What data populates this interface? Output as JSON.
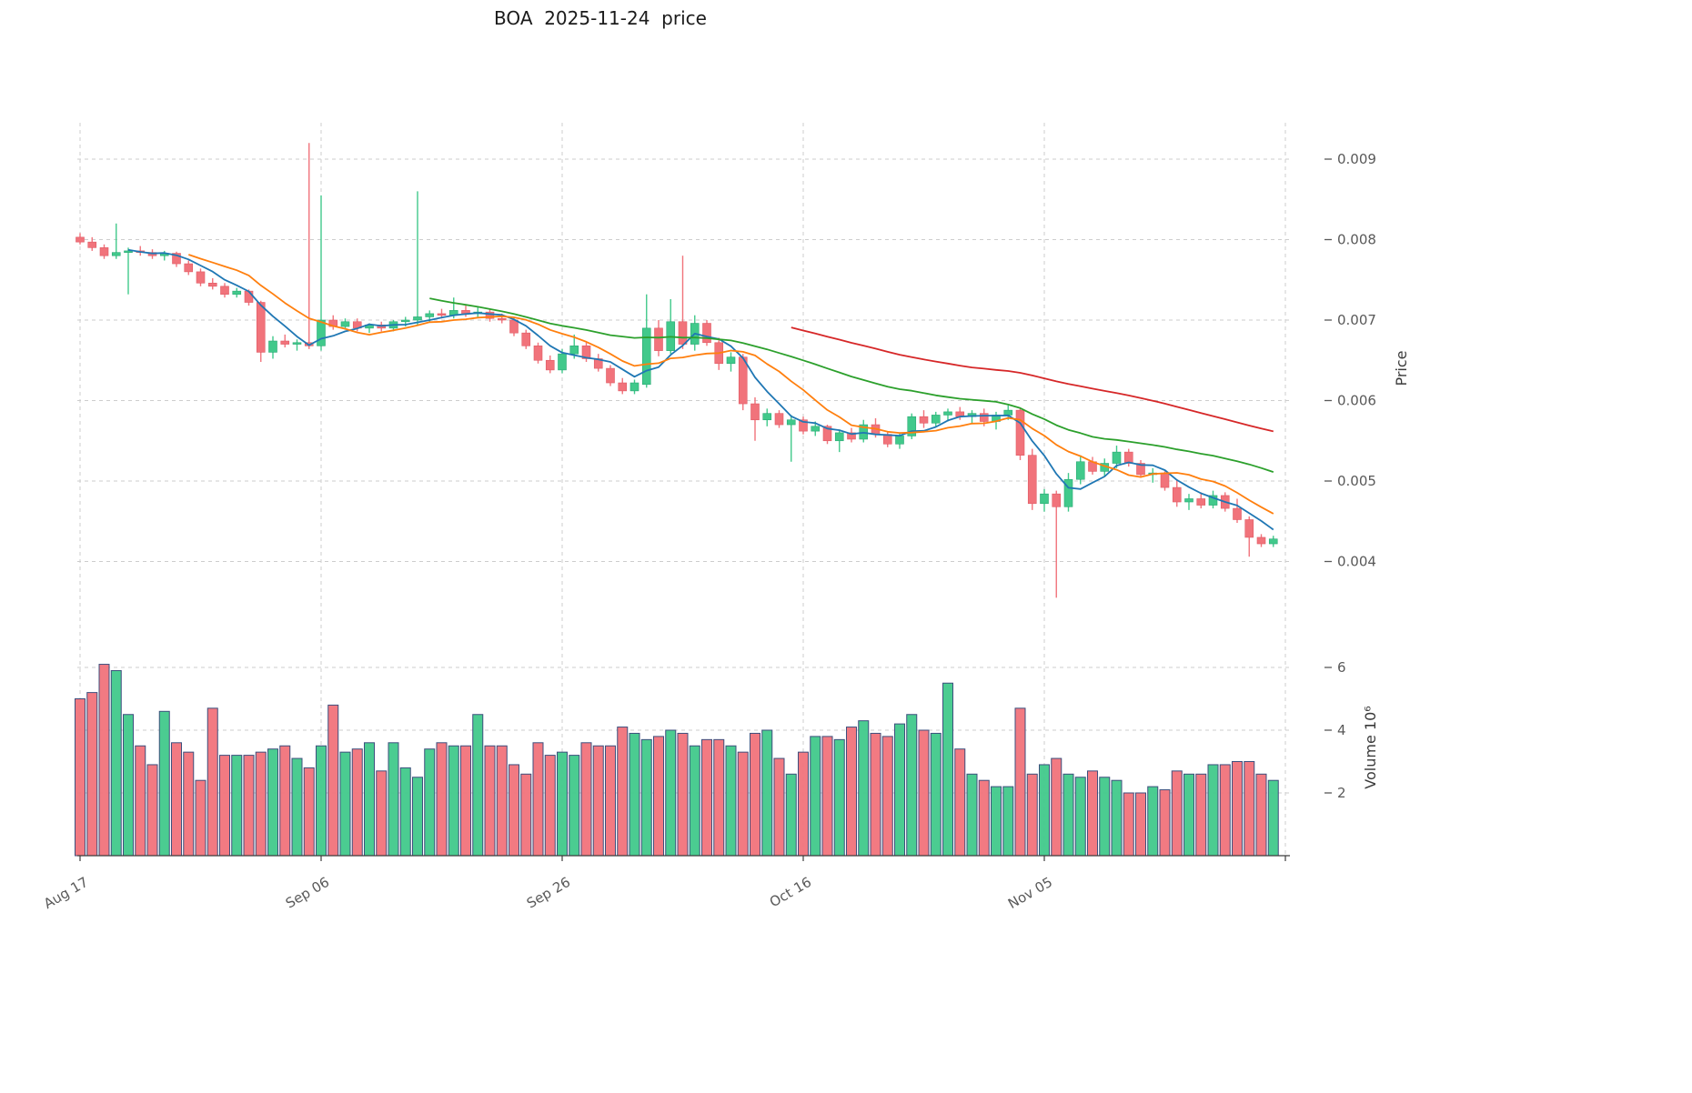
{
  "chart_data": {
    "type": "candlestick",
    "title": "BOA  2025-11-24  price",
    "xlabel": "",
    "ylabel": "Price",
    "ylabel_volume": "Volume 10⁶",
    "price_ticks": [
      "0.004",
      "0.005",
      "0.006",
      "0.007",
      "0.008",
      "0.009"
    ],
    "volume_ticks": [
      "2",
      "4",
      "6"
    ],
    "ylim": [
      0.0033,
      0.0095
    ],
    "volume_ylim": [
      0,
      6.5
    ],
    "x_ticks": [
      {
        "label": "Aug 17",
        "index": 0
      },
      {
        "label": "Sep 06",
        "index": 20
      },
      {
        "label": "Sep 26",
        "index": 40
      },
      {
        "label": "Oct 16",
        "index": 60
      },
      {
        "label": "Nov 05",
        "index": 80
      },
      {
        "label": "",
        "index": 100
      }
    ],
    "colors": {
      "up": "#41c98b",
      "down": "#f1737b",
      "up_edge": "#2aa874",
      "down_edge": "#df5a64",
      "volume_edge": "#3d4f7d",
      "grid": "#cdcdcd",
      "axis": "#3c3c3c",
      "tick_text": "#595959",
      "label_text": "#3a3a3a"
    },
    "indicators": [
      {
        "name": "sma-5",
        "window": 5,
        "color": "#1f77b4"
      },
      {
        "name": "sma-10",
        "window": 10,
        "color": "#ff7f0e"
      },
      {
        "name": "sma-30",
        "window": 30,
        "color": "#2ca02c"
      },
      {
        "name": "sma-60",
        "window": 60,
        "color": "#d62728"
      }
    ],
    "columns": [
      "date",
      "open",
      "high",
      "low",
      "close",
      "volume_millions"
    ],
    "ohlcv": [
      [
        "2025-08-17",
        0.00803,
        0.00808,
        0.00794,
        0.00797,
        5.0
      ],
      [
        "2025-08-18",
        0.00797,
        0.00803,
        0.00786,
        0.0079,
        5.2
      ],
      [
        "2025-08-19",
        0.0079,
        0.00794,
        0.00776,
        0.0078,
        6.1
      ],
      [
        "2025-08-20",
        0.0078,
        0.0082,
        0.00776,
        0.00784,
        5.9
      ],
      [
        "2025-08-21",
        0.00784,
        0.0079,
        0.00732,
        0.00786,
        4.5
      ],
      [
        "2025-08-22",
        0.00786,
        0.00792,
        0.0078,
        0.00784,
        3.5
      ],
      [
        "2025-08-23",
        0.00784,
        0.00788,
        0.00776,
        0.0078,
        2.9
      ],
      [
        "2025-08-24",
        0.0078,
        0.00786,
        0.00774,
        0.00783,
        4.6
      ],
      [
        "2025-08-25",
        0.00783,
        0.00785,
        0.00766,
        0.0077,
        3.6
      ],
      [
        "2025-08-26",
        0.0077,
        0.00774,
        0.00756,
        0.0076,
        3.3
      ],
      [
        "2025-08-27",
        0.0076,
        0.00764,
        0.00742,
        0.00746,
        2.4
      ],
      [
        "2025-08-28",
        0.00746,
        0.00752,
        0.00738,
        0.00742,
        4.7
      ],
      [
        "2025-08-29",
        0.00742,
        0.00746,
        0.00728,
        0.00732,
        3.2
      ],
      [
        "2025-08-30",
        0.00732,
        0.0074,
        0.00728,
        0.00736,
        3.2
      ],
      [
        "2025-08-31",
        0.00736,
        0.00738,
        0.00718,
        0.00722,
        3.2
      ],
      [
        "2025-09-01",
        0.00722,
        0.00724,
        0.00648,
        0.0066,
        3.3
      ],
      [
        "2025-09-02",
        0.0066,
        0.0068,
        0.00652,
        0.00674,
        3.4
      ],
      [
        "2025-09-03",
        0.00674,
        0.00682,
        0.00666,
        0.0067,
        3.5
      ],
      [
        "2025-09-04",
        0.0067,
        0.00676,
        0.00662,
        0.00672,
        3.1
      ],
      [
        "2025-09-05",
        0.00672,
        0.0092,
        0.00664,
        0.00668,
        2.8
      ],
      [
        "2025-09-06",
        0.00668,
        0.00855,
        0.00662,
        0.007,
        3.5
      ],
      [
        "2025-09-07",
        0.007,
        0.00706,
        0.00688,
        0.00692,
        4.8
      ],
      [
        "2025-09-08",
        0.00692,
        0.00702,
        0.00688,
        0.00698,
        3.3
      ],
      [
        "2025-09-09",
        0.00698,
        0.00702,
        0.00686,
        0.0069,
        3.4
      ],
      [
        "2025-09-10",
        0.0069,
        0.00696,
        0.00684,
        0.00694,
        3.6
      ],
      [
        "2025-09-11",
        0.00694,
        0.00698,
        0.00686,
        0.0069,
        2.7
      ],
      [
        "2025-09-12",
        0.0069,
        0.007,
        0.00686,
        0.00698,
        3.6
      ],
      [
        "2025-09-13",
        0.00698,
        0.00704,
        0.00692,
        0.007,
        2.8
      ],
      [
        "2025-09-14",
        0.007,
        0.0086,
        0.00694,
        0.00704,
        2.5
      ],
      [
        "2025-09-15",
        0.00704,
        0.00712,
        0.00698,
        0.00708,
        3.4
      ],
      [
        "2025-09-16",
        0.00708,
        0.00714,
        0.00702,
        0.00706,
        3.6
      ],
      [
        "2025-09-17",
        0.00706,
        0.00728,
        0.00702,
        0.00712,
        3.5
      ],
      [
        "2025-09-18",
        0.00712,
        0.00718,
        0.00704,
        0.00708,
        3.5
      ],
      [
        "2025-09-19",
        0.00708,
        0.00716,
        0.00704,
        0.0071,
        4.5
      ],
      [
        "2025-09-20",
        0.0071,
        0.00714,
        0.00698,
        0.00702,
        3.5
      ],
      [
        "2025-09-21",
        0.00702,
        0.00708,
        0.00696,
        0.007,
        3.5
      ],
      [
        "2025-09-22",
        0.007,
        0.00704,
        0.0068,
        0.00684,
        2.9
      ],
      [
        "2025-09-23",
        0.00684,
        0.00688,
        0.00664,
        0.00668,
        2.6
      ],
      [
        "2025-09-24",
        0.00668,
        0.00672,
        0.00646,
        0.0065,
        3.6
      ],
      [
        "2025-09-25",
        0.0065,
        0.00656,
        0.00634,
        0.00638,
        3.2
      ],
      [
        "2025-09-26",
        0.00638,
        0.00664,
        0.00634,
        0.00658,
        3.3
      ],
      [
        "2025-09-27",
        0.00658,
        0.00682,
        0.00652,
        0.00668,
        3.2
      ],
      [
        "2025-09-28",
        0.00668,
        0.00672,
        0.00648,
        0.00652,
        3.6
      ],
      [
        "2025-09-29",
        0.00652,
        0.00658,
        0.00636,
        0.0064,
        3.5
      ],
      [
        "2025-09-30",
        0.0064,
        0.00644,
        0.00618,
        0.00622,
        3.5
      ],
      [
        "2025-10-01",
        0.00622,
        0.00628,
        0.00608,
        0.00612,
        4.1
      ],
      [
        "2025-10-02",
        0.00612,
        0.00626,
        0.00608,
        0.00622,
        3.9
      ],
      [
        "2025-10-03",
        0.0062,
        0.00732,
        0.00616,
        0.0069,
        3.7
      ],
      [
        "2025-10-04",
        0.0069,
        0.007,
        0.00655,
        0.00662,
        3.8
      ],
      [
        "2025-10-05",
        0.00662,
        0.00726,
        0.00658,
        0.00698,
        4.0
      ],
      [
        "2025-10-06",
        0.00698,
        0.0078,
        0.00664,
        0.0067,
        3.9
      ],
      [
        "2025-10-07",
        0.0067,
        0.00706,
        0.00662,
        0.00696,
        3.5
      ],
      [
        "2025-10-08",
        0.00696,
        0.007,
        0.00668,
        0.00672,
        3.7
      ],
      [
        "2025-10-09",
        0.00672,
        0.00678,
        0.00638,
        0.00646,
        3.7
      ],
      [
        "2025-10-10",
        0.00646,
        0.0066,
        0.00636,
        0.00654,
        3.5
      ],
      [
        "2025-10-11",
        0.00654,
        0.00658,
        0.00588,
        0.00596,
        3.3
      ],
      [
        "2025-10-12",
        0.00596,
        0.00604,
        0.0055,
        0.00576,
        3.9
      ],
      [
        "2025-10-13",
        0.00576,
        0.0059,
        0.00568,
        0.00584,
        4.0
      ],
      [
        "2025-10-14",
        0.00584,
        0.00588,
        0.00566,
        0.0057,
        3.1
      ],
      [
        "2025-10-15",
        0.0057,
        0.00582,
        0.00524,
        0.00576,
        2.6
      ],
      [
        "2025-10-16",
        0.00576,
        0.0058,
        0.00558,
        0.00562,
        3.3
      ],
      [
        "2025-10-17",
        0.00562,
        0.00574,
        0.00556,
        0.00568,
        3.8
      ],
      [
        "2025-10-18",
        0.00568,
        0.0057,
        0.00546,
        0.0055,
        3.8
      ],
      [
        "2025-10-19",
        0.0055,
        0.00564,
        0.00536,
        0.0056,
        3.7
      ],
      [
        "2025-10-20",
        0.0056,
        0.00566,
        0.00548,
        0.00552,
        4.1
      ],
      [
        "2025-10-21",
        0.00552,
        0.00576,
        0.00548,
        0.0057,
        4.3
      ],
      [
        "2025-10-22",
        0.0057,
        0.00578,
        0.00554,
        0.00558,
        3.9
      ],
      [
        "2025-10-23",
        0.00558,
        0.00562,
        0.00542,
        0.00546,
        3.8
      ],
      [
        "2025-10-24",
        0.00546,
        0.0056,
        0.0054,
        0.00556,
        4.2
      ],
      [
        "2025-10-25",
        0.00556,
        0.00584,
        0.00552,
        0.0058,
        4.5
      ],
      [
        "2025-10-26",
        0.0058,
        0.00588,
        0.00566,
        0.00572,
        4.0
      ],
      [
        "2025-10-27",
        0.00572,
        0.00586,
        0.00568,
        0.00582,
        3.9
      ],
      [
        "2025-10-28",
        0.00582,
        0.0059,
        0.00574,
        0.00586,
        5.5
      ],
      [
        "2025-10-29",
        0.00586,
        0.00592,
        0.00576,
        0.0058,
        3.4
      ],
      [
        "2025-10-30",
        0.0058,
        0.00588,
        0.00572,
        0.00584,
        2.6
      ],
      [
        "2025-10-31",
        0.00584,
        0.0059,
        0.00568,
        0.00574,
        2.4
      ],
      [
        "2025-11-01",
        0.00574,
        0.00586,
        0.00564,
        0.00582,
        2.2
      ],
      [
        "2025-11-02",
        0.00582,
        0.00594,
        0.00576,
        0.00588,
        2.2
      ],
      [
        "2025-11-03",
        0.00588,
        0.0059,
        0.00526,
        0.00532,
        4.7
      ],
      [
        "2025-11-04",
        0.00532,
        0.0054,
        0.00464,
        0.00472,
        2.6
      ],
      [
        "2025-11-05",
        0.00472,
        0.0049,
        0.00462,
        0.00484,
        2.9
      ],
      [
        "2025-11-06",
        0.00484,
        0.00488,
        0.00355,
        0.00468,
        3.1
      ],
      [
        "2025-11-07",
        0.00468,
        0.0051,
        0.00462,
        0.00502,
        2.6
      ],
      [
        "2025-11-08",
        0.00502,
        0.00532,
        0.00496,
        0.00524,
        2.5
      ],
      [
        "2025-11-09",
        0.00524,
        0.0053,
        0.00508,
        0.00512,
        2.7
      ],
      [
        "2025-11-10",
        0.00512,
        0.00528,
        0.00506,
        0.00522,
        2.5
      ],
      [
        "2025-11-11",
        0.00522,
        0.00544,
        0.00516,
        0.00536,
        2.4
      ],
      [
        "2025-11-12",
        0.00536,
        0.0054,
        0.00518,
        0.00522,
        2.0
      ],
      [
        "2025-11-13",
        0.00522,
        0.00526,
        0.00504,
        0.00508,
        2.0
      ],
      [
        "2025-11-14",
        0.00508,
        0.00516,
        0.00498,
        0.0051,
        2.2
      ],
      [
        "2025-11-15",
        0.0051,
        0.00512,
        0.00488,
        0.00492,
        2.1
      ],
      [
        "2025-11-16",
        0.00492,
        0.00502,
        0.00468,
        0.00474,
        2.7
      ],
      [
        "2025-11-17",
        0.00474,
        0.00484,
        0.00464,
        0.00478,
        2.6
      ],
      [
        "2025-11-18",
        0.00478,
        0.00486,
        0.00466,
        0.0047,
        2.6
      ],
      [
        "2025-11-19",
        0.0047,
        0.00488,
        0.00466,
        0.00482,
        2.9
      ],
      [
        "2025-11-20",
        0.00482,
        0.00486,
        0.00462,
        0.00466,
        2.9
      ],
      [
        "2025-11-21",
        0.00466,
        0.00478,
        0.00448,
        0.00452,
        3.0
      ],
      [
        "2025-11-22",
        0.00452,
        0.00456,
        0.00406,
        0.0043,
        3.0
      ],
      [
        "2025-11-23",
        0.0043,
        0.00434,
        0.00418,
        0.00422,
        2.6
      ],
      [
        "2025-11-24",
        0.00422,
        0.00432,
        0.00418,
        0.00428,
        2.4
      ]
    ]
  }
}
